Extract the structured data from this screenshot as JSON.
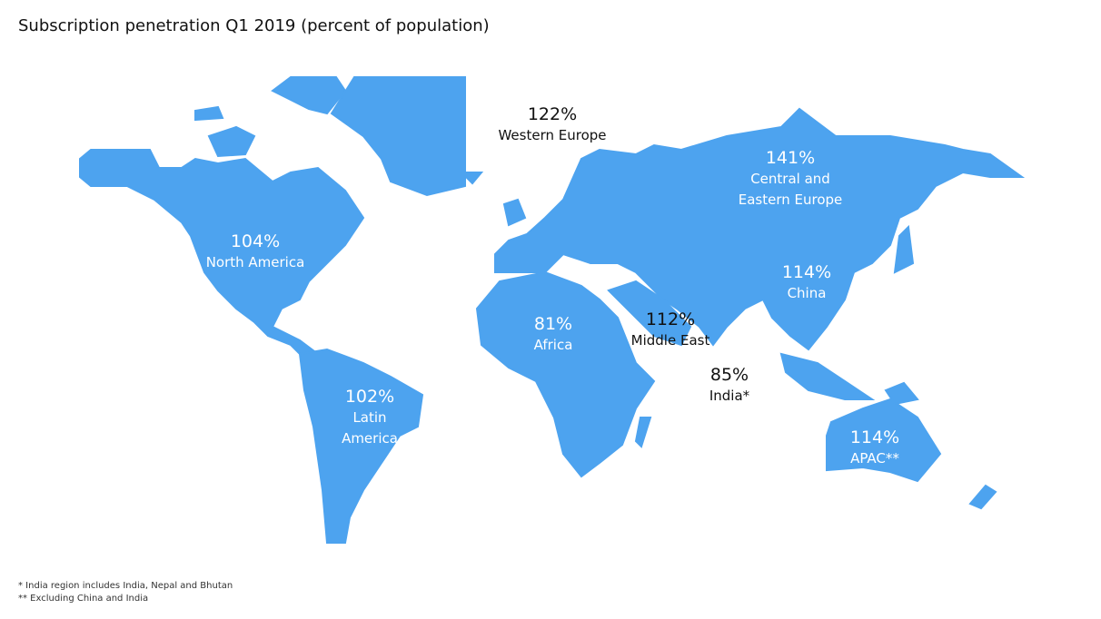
{
  "title": "Subscription penetration Q1 2019 (percent of population)",
  "regions": [
    {
      "value": "104%",
      "name": [
        "North America"
      ]
    },
    {
      "value": "102%",
      "name": [
        "Latin",
        "America"
      ]
    },
    {
      "value": "122%",
      "name": [
        "Western Europe"
      ]
    },
    {
      "value": "141%",
      "name": [
        "Central and",
        "Eastern Europe"
      ]
    },
    {
      "value": "114%",
      "name": [
        "China"
      ]
    },
    {
      "value": "81%",
      "name": [
        "Africa"
      ]
    },
    {
      "value": "112%",
      "name": [
        "Middle East"
      ]
    },
    {
      "value": "85%",
      "name": [
        "India*"
      ]
    },
    {
      "value": "114%",
      "name": [
        "APAC**"
      ]
    }
  ],
  "footnotes": [
    "* India region includes India, Nepal and Bhutan",
    "** Excluding China and India"
  ]
}
